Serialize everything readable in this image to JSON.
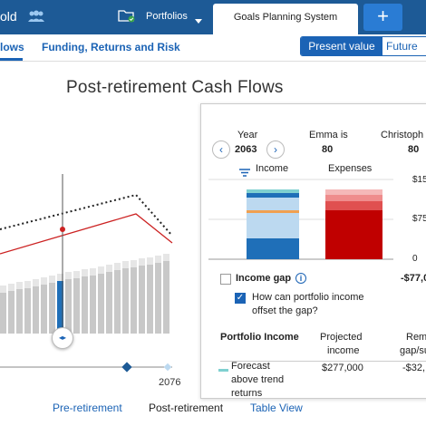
{
  "topbar": {
    "account_name_partial": "old",
    "people_icon": "people-icon",
    "folder_icon": "folder-icon",
    "portfolios_label": "Portfolios",
    "active_tab": "Goals Planning System",
    "add_tab_label": "+"
  },
  "nav": {
    "tab_flows_partial": "lows",
    "tab_funding": "Funding, Returns and Risk",
    "toggle_present": "Present value",
    "toggle_future_partial": "Future"
  },
  "chart": {
    "title": "Post-retirement Cash Flows",
    "x_tick_label": "2076",
    "scrubber_icon": "left-right-arrows-icon"
  },
  "panel": {
    "year_label": "Year",
    "year_value": "2063",
    "prev_icon": "chevron-left-icon",
    "next_icon": "chevron-right-icon",
    "person1_label": "Emma is",
    "person1_age": "80",
    "person2_label_partial": "Christoph",
    "person2_age": "80",
    "filter_icon": "filter-icon",
    "income_label": "Income",
    "expenses_label": "Expenses",
    "axis_150": "$15",
    "axis_75": "$75",
    "axis_0": "0",
    "income_gap_label": "Income gap",
    "info_icon": "info-icon",
    "income_gap_value": "-$77,0",
    "question_label_1": "How can portfolio income",
    "question_label_2": "offset the gap?",
    "col_portfolio_income": "Portfolio Income",
    "col_projected_1": "Projected",
    "col_projected_2": "income",
    "col_remain_1": "Remain",
    "col_remain_2": "gap/surp",
    "row1_label_1": "Forecast",
    "row1_label_2": "above trend",
    "row1_label_3": "returns",
    "row1_projected": "$277,000",
    "row1_remain": "-$32,"
  },
  "bottom_tabs": {
    "pre": "Pre-retirement",
    "post": "Post-retirement",
    "table": "Table View"
  },
  "colors": {
    "topbar": "#1d5a96",
    "accent_blue": "#1b63b5",
    "income_blue": "#1f6fb8",
    "expense_red": "#c00000",
    "line_red": "#cc2222"
  }
}
